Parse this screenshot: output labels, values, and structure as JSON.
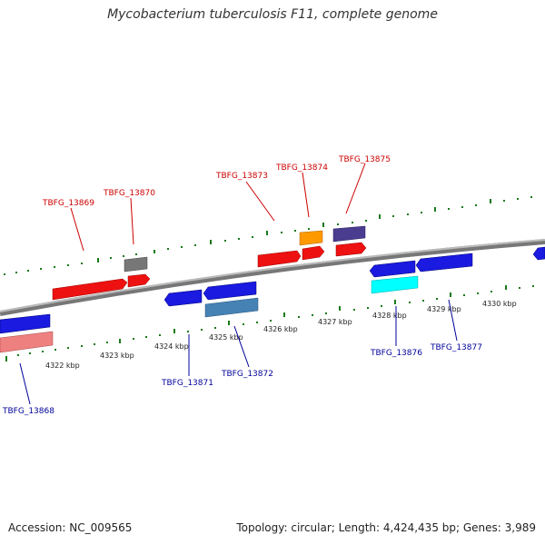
{
  "title": "Mycobacterium tuberculosis F11, complete genome",
  "footer": {
    "accession": "Accession: NC_009565",
    "info": "Topology: circular; Length: 4,424,435 bp; Genes: 3,989"
  },
  "colors": {
    "forward_label": "#cc0000",
    "reverse_label": "#000099",
    "tick": "#1a7a1a",
    "backbone": "#888888"
  },
  "ticks": [
    "4322 kbp",
    "4323 kbp",
    "4324 kbp",
    "4325 kbp",
    "4326 kbp",
    "4327 kbp",
    "4328 kbp",
    "4329 kbp",
    "4330 kbp"
  ],
  "genes": [
    {
      "label": "TBFG_13868",
      "strand": "reverse",
      "color": "#1a1ae0"
    },
    {
      "label": "TBFG_13869",
      "strand": "forward",
      "color": "#ee1111"
    },
    {
      "label": "TBFG_13870",
      "strand": "forward",
      "color": "#ee1111"
    },
    {
      "label": "TBFG_13871",
      "strand": "reverse",
      "color": "#1a1ae0"
    },
    {
      "label": "TBFG_13872",
      "strand": "reverse",
      "color": "#1a1ae0"
    },
    {
      "label": "TBFG_13873",
      "strand": "forward",
      "color": "#ee1111"
    },
    {
      "label": "TBFG_13874",
      "strand": "forward",
      "color": "#ee1111"
    },
    {
      "label": "TBFG_13875",
      "strand": "forward",
      "color": "#ee1111"
    },
    {
      "label": "TBFG_13876",
      "strand": "reverse",
      "color": "#1a1ae0"
    },
    {
      "label": "TBFG_13877",
      "strand": "reverse",
      "color": "#1a1ae0"
    }
  ]
}
